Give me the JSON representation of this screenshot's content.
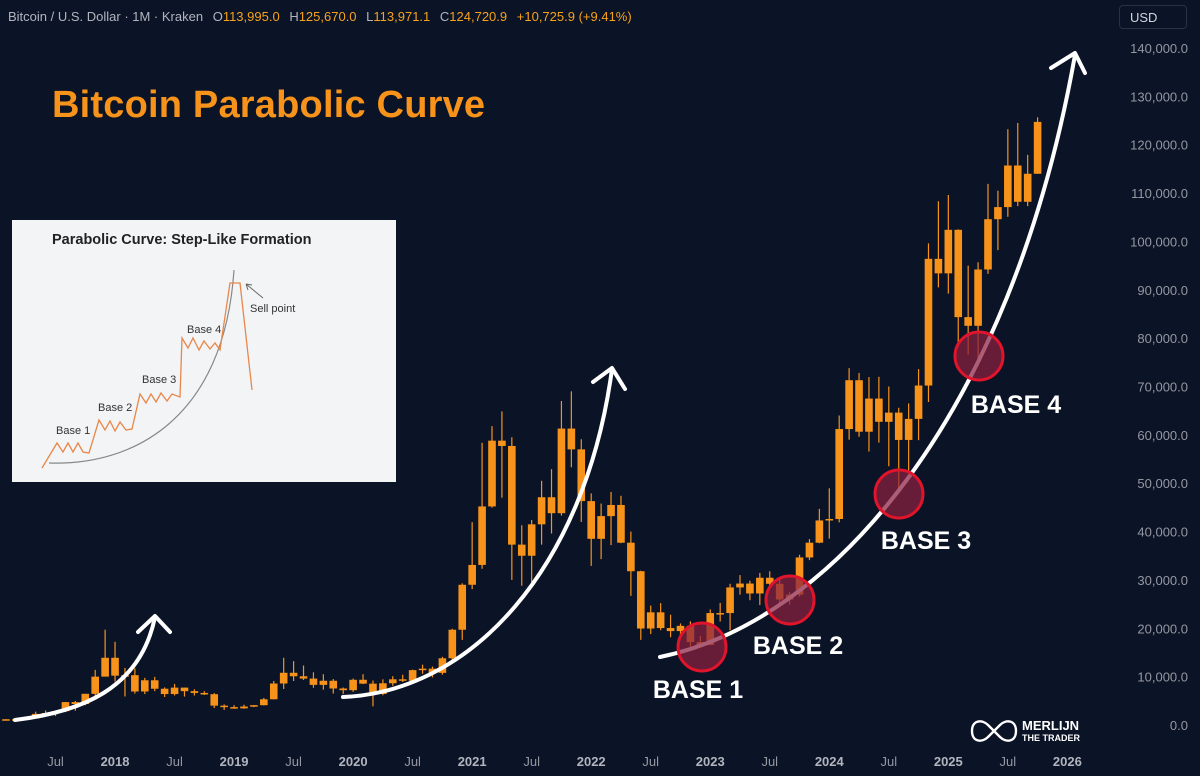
{
  "header": {
    "symbol": "Bitcoin / U.S. Dollar · 1M · Kraken",
    "open_label": "O",
    "open": "113,995.0",
    "high_label": "H",
    "high": "125,670.0",
    "low_label": "L",
    "low": "113,971.1",
    "close_label": "C",
    "close": "124,720.9",
    "change": "+10,725.9 (+9.41%)"
  },
  "currency_button": "USD",
  "title": "Bitcoin Parabolic Curve",
  "inset": {
    "title": "Parabolic Curve: Step-Like Formation",
    "labels": [
      "Base 1",
      "Base 2",
      "Base 3",
      "Base 4"
    ],
    "sell_point": "Sell point"
  },
  "bases": [
    "BASE 1",
    "BASE 2",
    "BASE 3",
    "BASE 4"
  ],
  "watermark": {
    "line1": "MERLIJN",
    "line2": "THE TRADER"
  },
  "colors": {
    "background": "#0b1326",
    "candle": "#f7931a",
    "title": "#f7931a",
    "base_circle": "#e0142b",
    "base_fill": "#6e1d3a",
    "arrow": "#ffffff",
    "axis_text": "#9598a1"
  },
  "chart_data": {
    "type": "candlestick",
    "interval": "1M",
    "ylim": [
      0,
      140000
    ],
    "y_ticks": [
      "0.0",
      "10,000.0",
      "20,000.0",
      "30,000.0",
      "40,000.0",
      "50,000.0",
      "60,000.0",
      "70,000.0",
      "80,000.0",
      "90,000.0",
      "100,000.0",
      "110,000.0",
      "120,000.0",
      "130,000.0",
      "140,000.0"
    ],
    "x_ticks": [
      {
        "label": "Jul",
        "date": "2017-07"
      },
      {
        "label": "2018",
        "date": "2018-01"
      },
      {
        "label": "Jul",
        "date": "2018-07"
      },
      {
        "label": "2019",
        "date": "2019-01"
      },
      {
        "label": "Jul",
        "date": "2019-07"
      },
      {
        "label": "2020",
        "date": "2020-01"
      },
      {
        "label": "Jul",
        "date": "2020-07"
      },
      {
        "label": "2021",
        "date": "2021-01"
      },
      {
        "label": "Jul",
        "date": "2021-07"
      },
      {
        "label": "2022",
        "date": "2022-01"
      },
      {
        "label": "Jul",
        "date": "2022-07"
      },
      {
        "label": "2023",
        "date": "2023-01"
      },
      {
        "label": "Jul",
        "date": "2023-07"
      },
      {
        "label": "2024",
        "date": "2024-01"
      },
      {
        "label": "Jul",
        "date": "2024-07"
      },
      {
        "label": "2025",
        "date": "2025-01"
      },
      {
        "label": "Jul",
        "date": "2025-07"
      },
      {
        "label": "2026",
        "date": "2026-01"
      }
    ],
    "candles_start": "2017-02",
    "ohlc": [
      [
        970,
        1200,
        920,
        1190
      ],
      [
        1190,
        1350,
        890,
        1080
      ],
      [
        1080,
        1350,
        1060,
        1350
      ],
      [
        1350,
        2760,
        1340,
        2300
      ],
      [
        2300,
        3000,
        2100,
        2480
      ],
      [
        2480,
        2950,
        1840,
        2870
      ],
      [
        2870,
        4750,
        2670,
        4740
      ],
      [
        4740,
        4980,
        2950,
        4340
      ],
      [
        4340,
        6450,
        4100,
        6450
      ],
      [
        6450,
        11400,
        5500,
        10000
      ],
      [
        10000,
        19700,
        10900,
        13900
      ],
      [
        13900,
        17200,
        9000,
        10200
      ],
      [
        10200,
        11800,
        5900,
        10300
      ],
      [
        10300,
        11700,
        6500,
        6930
      ],
      [
        6930,
        9750,
        6400,
        9250
      ],
      [
        9250,
        9950,
        7000,
        7500
      ],
      [
        7500,
        7770,
        5780,
        6400
      ],
      [
        6400,
        8500,
        6100,
        7730
      ],
      [
        7730,
        7750,
        5880,
        7000
      ],
      [
        7000,
        7400,
        6100,
        6630
      ],
      [
        6630,
        7000,
        6200,
        6370
      ],
      [
        6370,
        6600,
        3500,
        4000
      ],
      [
        4000,
        4250,
        3120,
        3700
      ],
      [
        3700,
        4100,
        3350,
        3440
      ],
      [
        3440,
        4200,
        3350,
        3820
      ],
      [
        3820,
        4100,
        3700,
        4100
      ],
      [
        4100,
        5600,
        4050,
        5320
      ],
      [
        5320,
        9100,
        5300,
        8580
      ],
      [
        8580,
        13900,
        7450,
        10800
      ],
      [
        10800,
        13200,
        9100,
        10080
      ],
      [
        10080,
        12300,
        9300,
        9600
      ],
      [
        9600,
        10900,
        7700,
        8300
      ],
      [
        8300,
        10500,
        7300,
        9150
      ],
      [
        9150,
        9500,
        6500,
        7550
      ],
      [
        7550,
        7750,
        6430,
        7200
      ],
      [
        7200,
        9600,
        6850,
        9350
      ],
      [
        9350,
        10500,
        8450,
        8550
      ],
      [
        8550,
        9200,
        3850,
        6420
      ],
      [
        6420,
        9450,
        6150,
        8630
      ],
      [
        8630,
        10100,
        8100,
        9450
      ],
      [
        9450,
        10400,
        8900,
        9140
      ],
      [
        9140,
        11450,
        8970,
        11350
      ],
      [
        11350,
        12480,
        10600,
        11650
      ],
      [
        11650,
        12080,
        9850,
        10780
      ],
      [
        10780,
        14100,
        10400,
        13800
      ],
      [
        13800,
        19900,
        13200,
        19700
      ],
      [
        19700,
        29300,
        17600,
        29000
      ],
      [
        29000,
        41950,
        28100,
        33100
      ],
      [
        33100,
        58350,
        32300,
        45200
      ],
      [
        45200,
        61800,
        44950,
        58800
      ],
      [
        58800,
        64850,
        47000,
        57700
      ],
      [
        57700,
        59500,
        30000,
        37300
      ],
      [
        37300,
        41300,
        28800,
        35000
      ],
      [
        35000,
        42400,
        29300,
        41500
      ],
      [
        41500,
        50500,
        37300,
        47100
      ],
      [
        47100,
        52900,
        39600,
        43800
      ],
      [
        43800,
        67000,
        43300,
        61300
      ],
      [
        61300,
        69000,
        53300,
        57000
      ],
      [
        57000,
        59100,
        42000,
        46300
      ],
      [
        46300,
        47900,
        32900,
        38500
      ],
      [
        38500,
        45800,
        34300,
        43200
      ],
      [
        43200,
        48200,
        37200,
        45500
      ],
      [
        45500,
        47400,
        37600,
        37700
      ],
      [
        37700,
        40000,
        26700,
        31800
      ],
      [
        31800,
        31900,
        17600,
        19950
      ],
      [
        19950,
        24700,
        18800,
        23300
      ],
      [
        23300,
        25200,
        19600,
        20050
      ],
      [
        20050,
        22800,
        18150,
        19420
      ],
      [
        19420,
        21000,
        18200,
        20500
      ],
      [
        20500,
        21450,
        15500,
        17150
      ],
      [
        17150,
        18400,
        16300,
        16550
      ],
      [
        16550,
        23900,
        16500,
        23150
      ],
      [
        23150,
        25250,
        21400,
        23150
      ],
      [
        23150,
        29200,
        19600,
        28450
      ],
      [
        28450,
        31000,
        26950,
        29250
      ],
      [
        29250,
        29850,
        25800,
        27200
      ],
      [
        27200,
        31450,
        24800,
        30450
      ],
      [
        30450,
        31800,
        28850,
        29200
      ],
      [
        29200,
        30200,
        25150,
        25950
      ],
      [
        25950,
        27450,
        24900,
        26950
      ],
      [
        26950,
        35200,
        26550,
        34650
      ],
      [
        34650,
        38450,
        34100,
        37700
      ],
      [
        37700,
        44700,
        37600,
        42300
      ],
      [
        42300,
        48950,
        38550,
        42600
      ],
      [
        42600,
        64000,
        41900,
        61200
      ],
      [
        61200,
        73800,
        59000,
        71300
      ],
      [
        71300,
        72800,
        59600,
        60650
      ],
      [
        60650,
        71950,
        56550,
        67500
      ],
      [
        67500,
        72000,
        58400,
        62700
      ],
      [
        62700,
        70000,
        53500,
        64600
      ],
      [
        64600,
        65600,
        49000,
        58950
      ],
      [
        58950,
        66500,
        52550,
        63300
      ],
      [
        63300,
        73600,
        58900,
        70200
      ],
      [
        70200,
        99600,
        66800,
        96400
      ],
      [
        96400,
        108300,
        90500,
        93400
      ],
      [
        93400,
        109600,
        89200,
        102400
      ],
      [
        102400,
        102500,
        78200,
        84350
      ],
      [
        84350,
        95000,
        76600,
        82550
      ],
      [
        82550,
        95700,
        74600,
        94200
      ],
      [
        94200,
        111900,
        93300,
        104600
      ],
      [
        104600,
        110500,
        98200,
        107100
      ],
      [
        107100,
        123200,
        105100,
        115700
      ],
      [
        115700,
        124500,
        107300,
        108200
      ],
      [
        108200,
        117900,
        107300,
        113995
      ],
      [
        113995,
        125670,
        113971.1,
        124720.9
      ]
    ]
  }
}
